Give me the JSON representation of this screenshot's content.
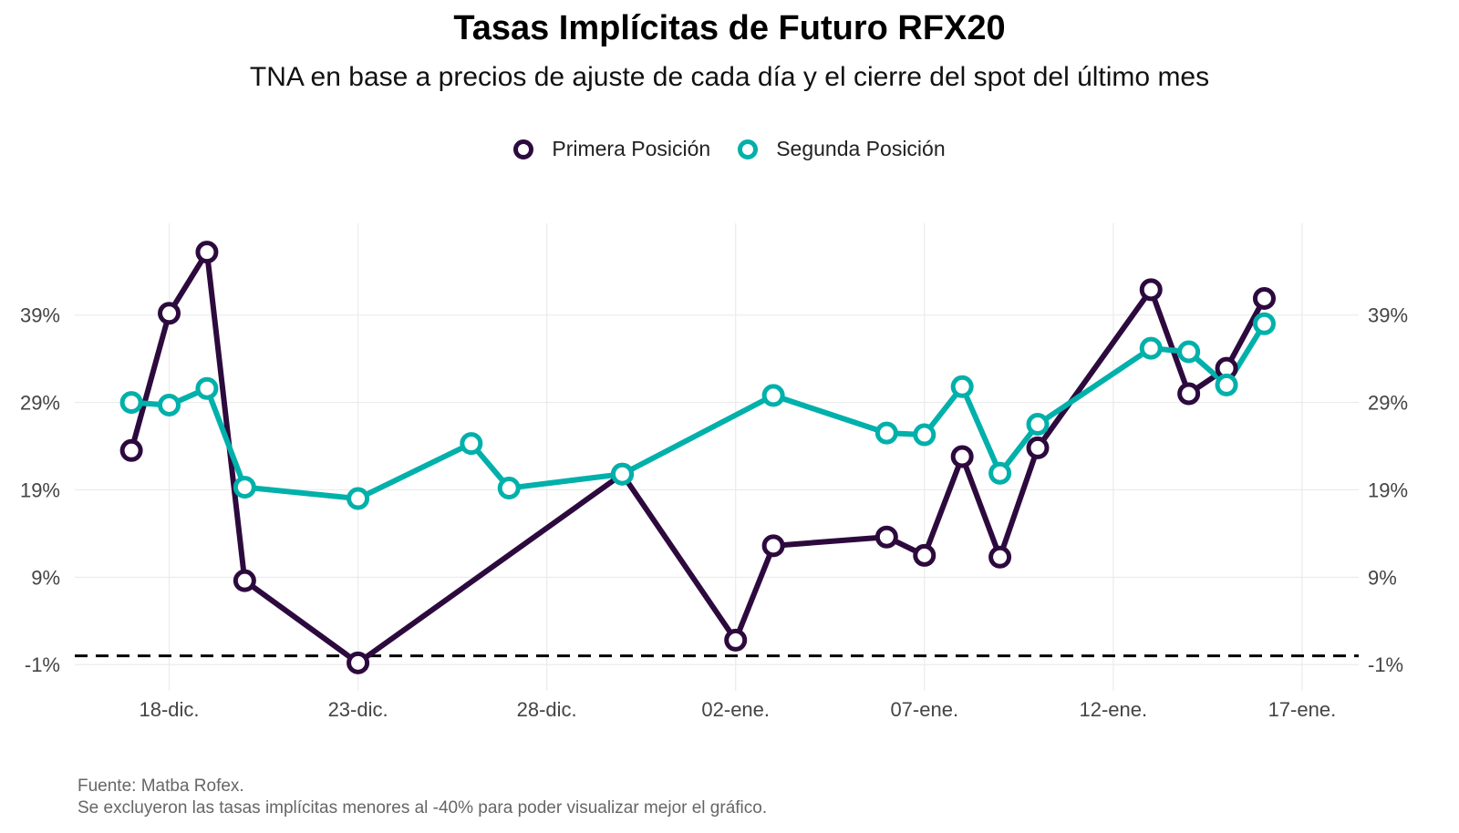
{
  "chart_data": {
    "type": "line",
    "title": "Tasas Implícitas de Futuro RFX20",
    "subtitle": "TNA en base a precios de ajuste de cada día y el cierre del spot del último mes",
    "xlabel": "",
    "ylabel": "",
    "x_ticks": [
      "18-dic.",
      "23-dic.",
      "28-dic.",
      "02-ene.",
      "07-ene.",
      "12-ene.",
      "17-ene."
    ],
    "x_tick_days": [
      1,
      6,
      11,
      16,
      21,
      26,
      31
    ],
    "y_ticks": [
      "-1%",
      "9%",
      "19%",
      "29%",
      "39%"
    ],
    "y_tick_values": [
      -1,
      9,
      19,
      29,
      39
    ],
    "xlim": [
      -1.5,
      32.5
    ],
    "ylim": [
      -4,
      49.5
    ],
    "secondary_y_axis": true,
    "grid": true,
    "legend_position": "top",
    "reference_line": {
      "y": 0,
      "style": "dashed",
      "color": "#000000"
    },
    "series": [
      {
        "name": "Primera Posición",
        "color": "#2d0a3e",
        "points": [
          {
            "x_label": "17-dic.",
            "x": 0,
            "y": 23.5
          },
          {
            "x_label": "18-dic.",
            "x": 1,
            "y": 39.2
          },
          {
            "x_label": "19-dic.",
            "x": 2,
            "y": 46.2
          },
          {
            "x_label": "20-dic.",
            "x": 3,
            "y": 8.6
          },
          {
            "x_label": "23-dic.",
            "x": 6,
            "y": -0.8
          },
          {
            "x_label": "30-dic.",
            "x": 13,
            "y": 20.8
          },
          {
            "x_label": "02-ene.",
            "x": 16,
            "y": 1.8
          },
          {
            "x_label": "03-ene.",
            "x": 17,
            "y": 12.6
          },
          {
            "x_label": "06-ene.",
            "x": 20,
            "y": 13.6
          },
          {
            "x_label": "07-ene.",
            "x": 21,
            "y": 11.5
          },
          {
            "x_label": "08-ene.",
            "x": 22,
            "y": 22.8
          },
          {
            "x_label": "09-ene.",
            "x": 23,
            "y": 11.3
          },
          {
            "x_label": "10-ene.",
            "x": 24,
            "y": 23.8
          },
          {
            "x_label": "13-ene.",
            "x": 27,
            "y": 41.9
          },
          {
            "x_label": "14-ene.",
            "x": 28,
            "y": 30.0
          },
          {
            "x_label": "15-ene.",
            "x": 29,
            "y": 32.9
          },
          {
            "x_label": "16-ene.",
            "x": 30,
            "y": 40.9
          }
        ]
      },
      {
        "name": "Segunda Posición",
        "color": "#00b0aa",
        "points": [
          {
            "x_label": "17-dic.",
            "x": 0,
            "y": 29.0
          },
          {
            "x_label": "18-dic.",
            "x": 1,
            "y": 28.7
          },
          {
            "x_label": "19-dic.",
            "x": 2,
            "y": 30.6
          },
          {
            "x_label": "20-dic.",
            "x": 3,
            "y": 19.3
          },
          {
            "x_label": "23-dic.",
            "x": 6,
            "y": 18.0
          },
          {
            "x_label": "26-dic.",
            "x": 9,
            "y": 24.3
          },
          {
            "x_label": "27-dic.",
            "x": 10,
            "y": 19.2
          },
          {
            "x_label": "30-dic.",
            "x": 13,
            "y": 20.8
          },
          {
            "x_label": "03-ene.",
            "x": 17,
            "y": 29.8
          },
          {
            "x_label": "06-ene.",
            "x": 20,
            "y": 25.5
          },
          {
            "x_label": "07-ene.",
            "x": 21,
            "y": 25.3
          },
          {
            "x_label": "08-ene.",
            "x": 22,
            "y": 30.8
          },
          {
            "x_label": "09-ene.",
            "x": 23,
            "y": 20.9
          },
          {
            "x_label": "10-ene.",
            "x": 24,
            "y": 26.5
          },
          {
            "x_label": "13-ene.",
            "x": 27,
            "y": 35.2
          },
          {
            "x_label": "14-ene.",
            "x": 28,
            "y": 34.8
          },
          {
            "x_label": "15-ene.",
            "x": 29,
            "y": 31.0
          },
          {
            "x_label": "16-ene.",
            "x": 30,
            "y": 38.0
          }
        ]
      }
    ]
  },
  "legend": {
    "items": [
      "Primera Posición",
      "Segunda Posición"
    ]
  },
  "footnotes": {
    "source": "Fuente: Matba Rofex.",
    "note": "Se excluyeron las tasas implícitas menores al -40% para poder visualizar mejor el gráfico."
  }
}
